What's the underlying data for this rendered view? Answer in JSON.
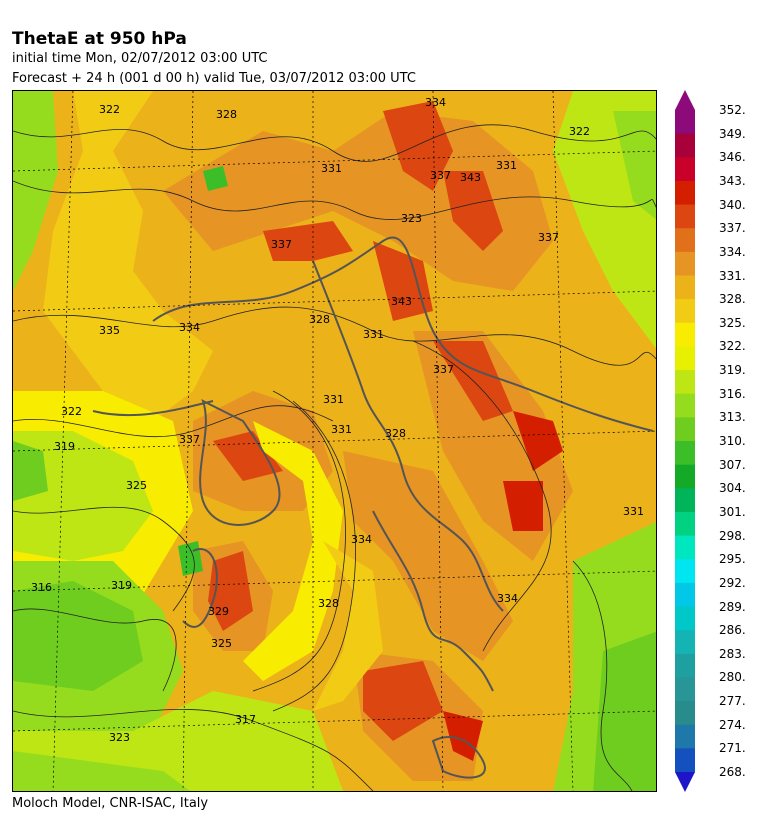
{
  "header": {
    "title": "ThetaE at 950 hPa",
    "initial": "initial time  Mon, 02/07/2012  03:00 UTC",
    "forecast": "Forecast  +  24 h  (001 d 00 h)  valid Tue, 03/07/2012 03:00 UTC"
  },
  "footer": "Moloch Model, CNR-ISAC, Italy",
  "colorbar": {
    "levels": [
      {
        "value": "352.",
        "color": "#8c0a7a"
      },
      {
        "value": "349.",
        "color": "#a8003a"
      },
      {
        "value": "346.",
        "color": "#c8002a"
      },
      {
        "value": "343.",
        "color": "#d41e00"
      },
      {
        "value": "340.",
        "color": "#dc4610"
      },
      {
        "value": "337.",
        "color": "#e0701a"
      },
      {
        "value": "334.",
        "color": "#e69424"
      },
      {
        "value": "331.",
        "color": "#ecb21a"
      },
      {
        "value": "328.",
        "color": "#f2cc14"
      },
      {
        "value": "325.",
        "color": "#f8ec00"
      },
      {
        "value": "322.",
        "color": "#e6f000"
      },
      {
        "value": "319.",
        "color": "#bee614"
      },
      {
        "value": "316.",
        "color": "#96dc1e"
      },
      {
        "value": "313.",
        "color": "#6ecd1e"
      },
      {
        "value": "310.",
        "color": "#3cbe28"
      },
      {
        "value": "307.",
        "color": "#14aa28"
      },
      {
        "value": "304.",
        "color": "#00b45a"
      },
      {
        "value": "301.",
        "color": "#00d282"
      },
      {
        "value": "298.",
        "color": "#00e6be"
      },
      {
        "value": "295.",
        "color": "#00e6f0"
      },
      {
        "value": "292.",
        "color": "#00c8e6"
      },
      {
        "value": "289.",
        "color": "#00c8c8"
      },
      {
        "value": "286.",
        "color": "#14b4b4"
      },
      {
        "value": "283.",
        "color": "#1ea0a0"
      },
      {
        "value": "280.",
        "color": "#289696"
      },
      {
        "value": "277.",
        "color": "#288c8c"
      },
      {
        "value": "274.",
        "color": "#1e78aa"
      },
      {
        "value": "271.",
        "color": "#1450be"
      },
      {
        "value": "268.",
        "color": "#1e14c8"
      }
    ]
  },
  "map_labels": [
    {
      "text": "322"
    },
    {
      "text": "328"
    },
    {
      "text": "334"
    },
    {
      "text": "322"
    },
    {
      "text": "331"
    },
    {
      "text": "337"
    },
    {
      "text": "343"
    },
    {
      "text": "323"
    },
    {
      "text": "337"
    },
    {
      "text": "331"
    },
    {
      "text": "335"
    },
    {
      "text": "334"
    },
    {
      "text": "328"
    },
    {
      "text": "331"
    },
    {
      "text": "337"
    },
    {
      "text": "322"
    },
    {
      "text": "319"
    },
    {
      "text": "325"
    },
    {
      "text": "337"
    },
    {
      "text": "331"
    },
    {
      "text": "328"
    },
    {
      "text": "334"
    },
    {
      "text": "331"
    },
    {
      "text": "316"
    },
    {
      "text": "319"
    },
    {
      "text": "329"
    },
    {
      "text": "325"
    },
    {
      "text": "328"
    },
    {
      "text": "334"
    },
    {
      "text": "317"
    },
    {
      "text": "323"
    },
    {
      "text": "331"
    },
    {
      "text": "337"
    },
    {
      "text": "343"
    }
  ]
}
